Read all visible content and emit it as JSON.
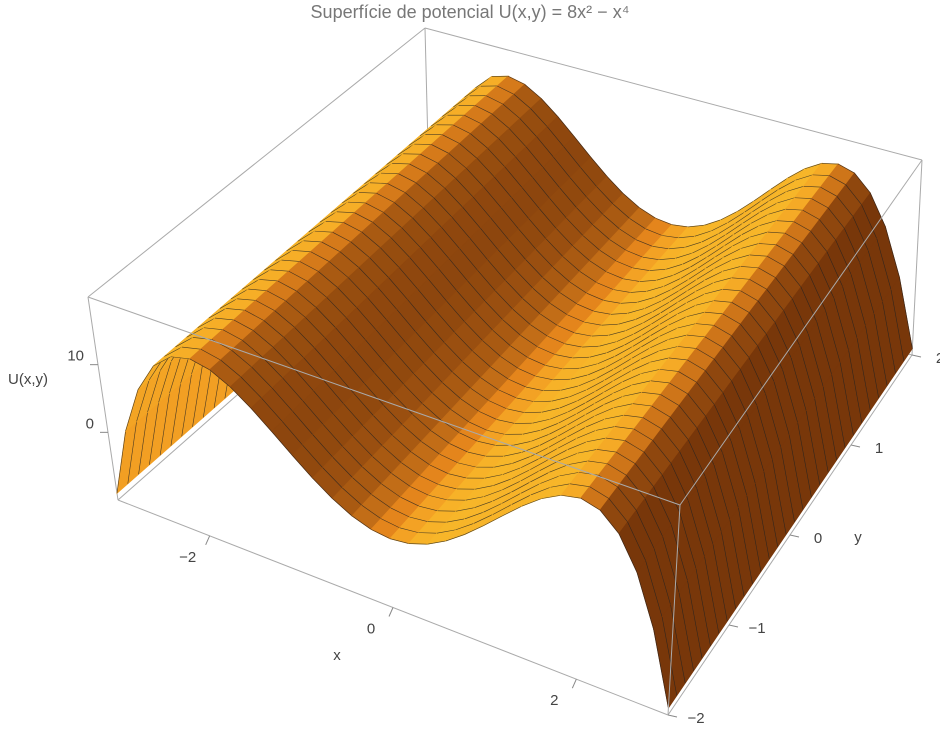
{
  "chart_data": {
    "type": "surface3d",
    "title": "Superfície de potencial U(x,y) = 8x² − x⁴",
    "x_label": "x",
    "y_label": "y",
    "z_label": "U(x,y)",
    "x": [
      -3,
      -2.8,
      -2.6,
      -2.4,
      -2.2,
      -2,
      -1.8,
      -1.6,
      -1.4,
      -1.2,
      -1,
      -0.8,
      -0.6,
      -0.4,
      -0.2,
      0,
      0.2,
      0.4,
      0.6,
      0.8,
      1,
      1.2,
      1.4,
      1.6,
      1.8,
      2,
      2.2,
      2.4,
      2.6,
      2.8,
      3
    ],
    "values": [
      -9,
      1.25,
      8.38,
      12.9,
      15.29,
      16,
      15.42,
      13.93,
      11.84,
      9.45,
      7,
      4.71,
      2.75,
      1.25,
      0.32,
      0,
      0.32,
      1.25,
      2.75,
      4.71,
      7,
      9.45,
      11.84,
      13.93,
      15.42,
      16,
      15.29,
      12.9,
      8.38,
      1.25,
      -9
    ],
    "color": "#f5a623",
    "mesh_lines": 30,
    "xlim": [
      -3,
      3
    ],
    "ylim": [
      -2,
      2
    ],
    "zlim": [
      -10,
      20
    ],
    "xticks": [
      {
        "value": -2,
        "label": "−2"
      },
      0,
      2
    ],
    "yticks": [
      {
        "value": -2,
        "label": "−2"
      },
      {
        "value": -1,
        "label": "−1"
      },
      0,
      1,
      2
    ],
    "zticks": [
      0,
      10
    ]
  }
}
